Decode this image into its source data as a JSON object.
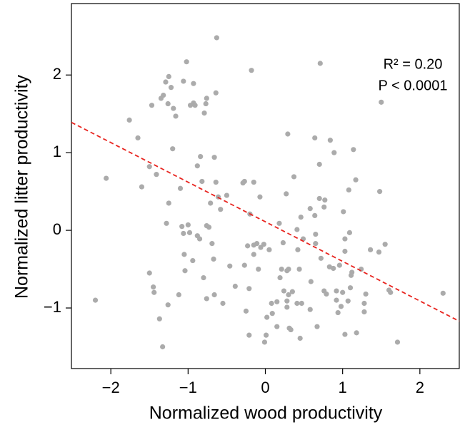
{
  "chart_data": {
    "type": "scatter",
    "x_label": "Normalized wood productivity",
    "y_label": "Normalized litter productivity",
    "annotations": [
      "R² = 0.20",
      "P < 0.0001"
    ],
    "xlim": [
      -2.51,
      2.51
    ],
    "ylim": [
      -1.78,
      2.92
    ],
    "xticks": [
      {
        "value": -2,
        "label": "−2"
      },
      {
        "value": -1,
        "label": "−1"
      },
      0,
      1,
      2
    ],
    "yticks": [
      {
        "value": -1,
        "label": "−1"
      },
      0,
      1,
      2
    ],
    "color": "#ababab",
    "x": [
      -2.2,
      -2.06,
      -1.76,
      -1.65,
      -1.6,
      -1.5,
      -1.41,
      -1.47,
      -1.5,
      -1.45,
      -1.44,
      -1.37,
      -1.33,
      -1.35,
      -1.32,
      -1.29,
      -1.25,
      -1.26,
      -1.22,
      -1.19,
      -1.16,
      -1.2,
      -1.25,
      -1.28,
      -1.26,
      -1.1,
      -1.08,
      -1.06,
      -1.02,
      -1.06,
      -1.05,
      -1.04,
      -1.0,
      -0.98,
      -0.97,
      -0.93,
      -0.93,
      -0.91,
      -0.94,
      -0.88,
      -0.84,
      -0.82,
      -0.88,
      -0.85,
      -1.12,
      -0.76,
      -0.77,
      -0.79,
      -0.76,
      -0.73,
      -0.71,
      -0.69,
      -0.8,
      -0.76,
      -0.66,
      -0.67,
      -0.64,
      -0.63,
      -0.64,
      -0.66,
      -0.61,
      -0.58,
      -0.5,
      -0.55,
      -0.46,
      -0.39,
      -0.29,
      -0.27,
      -0.25,
      -0.27,
      -0.23,
      -0.21,
      -0.2,
      -0.21,
      -0.18,
      -0.15,
      -0.15,
      -0.15,
      -0.11,
      -0.07,
      -0.09,
      -0.06,
      -0.02,
      0.01,
      -0.01,
      0.02,
      0.05,
      0.08,
      0.09,
      0.15,
      0.15,
      0.18,
      0.19,
      0.21,
      0.23,
      0.24,
      0.28,
      0.28,
      0.27,
      0.29,
      0.3,
      0.3,
      0.31,
      0.33,
      0.28,
      0.35,
      0.37,
      0.41,
      0.41,
      0.42,
      0.44,
      0.45,
      0.46,
      0.47,
      0.49,
      0.71,
      0.59,
      0.58,
      0.58,
      0.64,
      0.64,
      0.65,
      0.65,
      0.67,
      0.7,
      0.7,
      0.72,
      0.76,
      0.77,
      0.76,
      0.79,
      0.83,
      0.84,
      0.89,
      0.88,
      0.92,
      0.92,
      0.94,
      0.96,
      0.98,
      1.0,
      1.01,
      1.03,
      1.03,
      1.03,
      1.07,
      1.08,
      1.09,
      1.1,
      1.11,
      1.12,
      1.14,
      1.17,
      1.18,
      1.24,
      1.28,
      1.28,
      1.3,
      1.36,
      1.47,
      1.48,
      1.5,
      1.55,
      1.62,
      1.6,
      1.71,
      2.3
    ],
    "y": [
      -0.9,
      0.67,
      1.42,
      1.19,
      0.56,
      0.82,
      0.72,
      1.61,
      -0.55,
      -0.73,
      -0.8,
      -1.14,
      -1.5,
      1.7,
      1.74,
      1.91,
      1.98,
      1.63,
      1.84,
      1.57,
      1.47,
      1.05,
      0.35,
      0.09,
      -0.96,
      0.54,
      0.05,
      1.92,
      2.17,
      -0.04,
      -0.31,
      -0.52,
      0.07,
      -0.03,
      1.61,
      1.89,
      1.64,
      1.61,
      -0.39,
      0.83,
      0.95,
      0.63,
      -0.07,
      -0.11,
      -0.83,
      1.7,
      1.63,
      1.51,
      0.06,
      0.04,
      0.35,
      -0.17,
      -0.61,
      -0.88,
      0.94,
      -0.37,
      1.77,
      2.48,
      0.62,
      -0.83,
      0.43,
      0.27,
      0.45,
      -0.94,
      -0.46,
      -0.72,
      0.61,
      0.63,
      -1.04,
      -0.45,
      -0.2,
      -1.35,
      0.21,
      -0.75,
      2.06,
      -0.19,
      -0.31,
      0.62,
      -0.17,
      0.43,
      -0.5,
      -0.22,
      -0.18,
      -1.35,
      -1.44,
      -1.12,
      -0.25,
      -0.94,
      -1.07,
      -0.92,
      -1.24,
      0.09,
      -0.61,
      -0.5,
      -0.16,
      -0.78,
      -0.91,
      -0.52,
      0.47,
      1.24,
      -0.83,
      -0.5,
      -1.26,
      -1.28,
      -0.99,
      -0.79,
      0.69,
      0.01,
      -0.94,
      -0.25,
      -0.5,
      -1.39,
      0.17,
      -0.94,
      -0.11,
      2.15,
      -0.66,
      -1.02,
      0.28,
      0.19,
      1.19,
      -0.17,
      -0.05,
      -1.24,
      0.41,
      0.85,
      -0.36,
      0.3,
      0.39,
      -0.78,
      -0.82,
      -0.47,
      1.16,
      1.0,
      -0.49,
      -0.9,
      -0.78,
      -1.06,
      -0.45,
      -0.98,
      -0.8,
      0.24,
      -0.11,
      -0.27,
      -1.34,
      -0.91,
      0.52,
      -0.03,
      -0.74,
      -0.58,
      -0.54,
      1.04,
      0.65,
      -1.32,
      -0.5,
      -0.94,
      -1.05,
      -0.82,
      -0.25,
      -0.28,
      0.5,
      1.65,
      -0.18,
      -0.8,
      -0.77,
      -1.44,
      -0.81
    ],
    "fit": {
      "x": [
        -2.51,
        2.51
      ],
      "y": [
        1.39,
        -1.17
      ],
      "color": "#e8241f"
    }
  }
}
